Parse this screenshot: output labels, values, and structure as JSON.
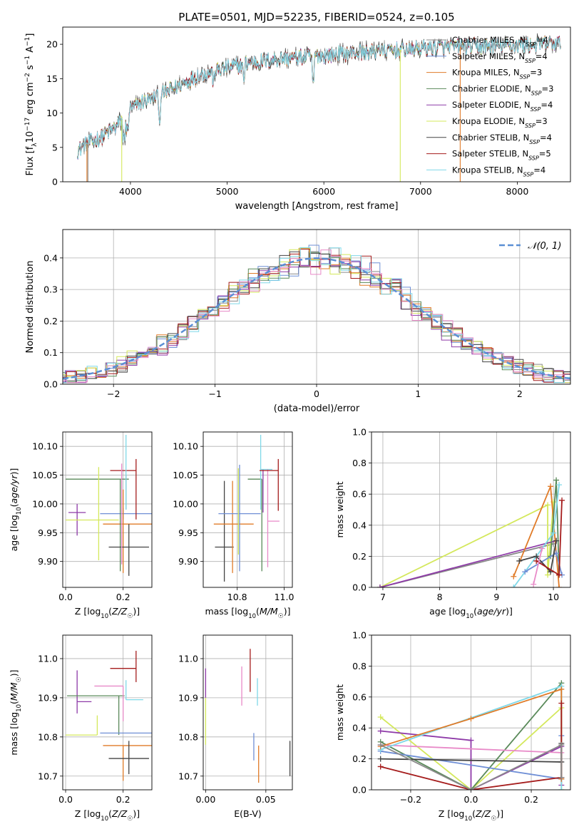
{
  "figure": {
    "title": "PLATE=0501, MJD=52235, FIBERID=0524, z=0.105"
  },
  "palette": {
    "Chabrier MILES": "#8a8a8a",
    "Salpeter MILES": "#6f8fd6",
    "Kroupa MILES": "#e07b28",
    "Chabrier ELODIE": "#5a8a5a",
    "Salpeter ELODIE": "#8e3aa8",
    "Kroupa ELODIE": "#d4e85c",
    "Chabrier STELIB": "#444444",
    "Salpeter STELIB": "#a51c1c",
    "Kroupa STELIB": "#7fd8e8",
    "extra": "#e88ac8"
  },
  "chart_data": [
    {
      "type": "line",
      "panel": "spectrum",
      "xlabel": "wavelength [Angstrom, rest frame]",
      "ylabel": "Flux [f_λ10^-17 erg cm^-2 s^-1 A^-1]",
      "xlim": [
        3300,
        8550
      ],
      "ylim": [
        0,
        22.5
      ],
      "xticks": [
        4000,
        5000,
        6000,
        7000,
        8000
      ],
      "yticks": [
        0,
        5,
        10,
        15,
        20
      ],
      "legend_position": "top-right",
      "continuum": {
        "x": [
          3450,
          3550,
          3700,
          3850,
          4000,
          4100,
          4300,
          4500,
          4700,
          5000,
          5200,
          5500,
          5800,
          6000,
          6300,
          6600,
          7000,
          7300,
          7600,
          8000,
          8300,
          8450
        ],
        "y": [
          4.5,
          5.5,
          6.5,
          8.0,
          10.5,
          11.5,
          12.5,
          14.0,
          15.5,
          16.5,
          17.2,
          17.8,
          18.2,
          18.4,
          18.8,
          19.0,
          19.4,
          19.6,
          19.7,
          19.9,
          20.0,
          20.1
        ]
      },
      "series": [
        {
          "name": "Chabrier MILES, N_SSP=4"
        },
        {
          "name": "Salpeter MILES, N_SSP=4"
        },
        {
          "name": "Kroupa MILES, N_SSP=3"
        },
        {
          "name": "Chabrier ELODIE, N_SSP=3"
        },
        {
          "name": "Salpeter ELODIE, N_SSP=4"
        },
        {
          "name": "Kroupa ELODIE, N_SSP=3"
        },
        {
          "name": "Chabrier STELIB, N_SSP=4"
        },
        {
          "name": "Salpeter STELIB, N_SSP=5"
        },
        {
          "name": "Kroupa STELIB, N_SSP=4"
        }
      ],
      "drop_lines": [
        {
          "x": 3910,
          "series": "Kroupa ELODIE"
        },
        {
          "x": 6790,
          "series": "Kroupa ELODIE"
        },
        {
          "x": 7410,
          "series": "Kroupa MILES"
        },
        {
          "x": 3550,
          "series": "Kroupa MILES"
        },
        {
          "x": 3560,
          "series": "Chabrier MILES"
        }
      ]
    },
    {
      "type": "line",
      "panel": "residual-histogram",
      "xlabel": "(data-model)/error",
      "ylabel": "Normed distribution",
      "xlim": [
        -2.5,
        2.5
      ],
      "ylim": [
        0,
        0.49
      ],
      "xticks": [
        -2,
        -1,
        0,
        1,
        2
      ],
      "yticks": [
        0.0,
        0.1,
        0.2,
        0.3,
        0.4
      ],
      "grid": true,
      "legend_position": "top-right",
      "reference": {
        "name": "𝒩(0, 1)",
        "mean": 0,
        "sigma": 1,
        "style": "dashed"
      },
      "bin_width": 0.1,
      "series_colors": [
        "Chabrier MILES",
        "Salpeter MILES",
        "Kroupa MILES",
        "Chabrier ELODIE",
        "Salpeter ELODIE",
        "Kroupa ELODIE",
        "Chabrier STELIB",
        "Salpeter STELIB",
        "Kroupa STELIB",
        "extra"
      ]
    },
    {
      "type": "scatter",
      "panel": "age-vs-Z",
      "xlabel": "Z [log10(Z/Z☉)]",
      "ylabel": "age  [log10(age/yr)]",
      "xlim": [
        -0.01,
        0.3
      ],
      "ylim": [
        9.855,
        10.125
      ],
      "xticks": [
        0.0,
        0.2
      ],
      "xticklabels": [
        "0.0",
        "0.2"
      ],
      "yticks": [
        9.9,
        9.95,
        10.0,
        10.05,
        10.1
      ],
      "yticklabels": [
        "9.90",
        "9.95",
        "10.00",
        "10.05",
        "10.10"
      ],
      "grid": true,
      "points": [
        {
          "series": "Chabrier MILES",
          "x": 0.21,
          "y": 10.01,
          "xerr": [
            0.0,
            0.0
          ],
          "yerr": [
            0.02,
            0.04
          ]
        },
        {
          "series": "Salpeter MILES",
          "x": 0.2,
          "y": 9.983,
          "xerr": [
            0.08,
            0.1
          ],
          "yerr": [
            0.01,
            0.01
          ]
        },
        {
          "series": "Kroupa MILES",
          "x": 0.2,
          "y": 9.965,
          "xerr": [
            0.07,
            0.1
          ],
          "yerr": [
            0.085,
            0.06
          ]
        },
        {
          "series": "Chabrier ELODIE",
          "x": 0.19,
          "y": 10.043,
          "xerr": [
            0.19,
            0.03
          ],
          "yerr": [
            0.16,
            0.0
          ]
        },
        {
          "series": "Salpeter ELODIE",
          "x": 0.04,
          "y": 9.985,
          "xerr": [
            0.03,
            0.03
          ],
          "yerr": [
            0.04,
            0.015
          ]
        },
        {
          "series": "Kroupa ELODIE",
          "x": 0.115,
          "y": 9.972,
          "xerr": [
            0.115,
            0.07
          ],
          "yerr": [
            0.07,
            0.092
          ]
        },
        {
          "series": "Chabrier STELIB",
          "x": 0.22,
          "y": 9.925,
          "xerr": [
            0.07,
            0.07
          ],
          "yerr": [
            0.05,
            0.04
          ]
        },
        {
          "series": "Salpeter STELIB",
          "x": 0.245,
          "y": 10.058,
          "xerr": [
            0.09,
            0.0
          ],
          "yerr": [
            0.085,
            0.02
          ]
        },
        {
          "series": "Kroupa STELIB",
          "x": 0.21,
          "y": 10.06,
          "xerr": [
            0.0,
            0.0
          ],
          "yerr": [
            0.07,
            0.06
          ]
        },
        {
          "series": "extra",
          "x": 0.195,
          "y": 10.07,
          "xerr": [
            0.0,
            0.0
          ],
          "yerr": [
            0.175,
            0.0
          ]
        }
      ]
    },
    {
      "type": "scatter",
      "panel": "age-vs-mass",
      "xlabel": "mass [log10(M/M☉)]",
      "ylabel": "",
      "xlim": [
        10.655,
        11.035
      ],
      "ylim": [
        9.855,
        10.125
      ],
      "xticks": [
        10.8,
        11.0
      ],
      "xticklabels": [
        "10.8",
        "11.0"
      ],
      "yticks": [
        9.9,
        9.95,
        10.0,
        10.05,
        10.1
      ],
      "yticklabels": [
        "9.90",
        "9.95",
        "10.00",
        "10.05",
        "10.10"
      ],
      "grid": true,
      "points": [
        {
          "series": "Chabrier STELIB",
          "x": 10.745,
          "y": 9.925,
          "xerr": [
            0.04,
            0.04
          ],
          "yerr": [
            0.06,
            0.115
          ]
        },
        {
          "series": "Kroupa MILES",
          "x": 10.78,
          "y": 9.965,
          "xerr": [
            0.08,
            0.09
          ],
          "yerr": [
            0.085,
            0.075
          ]
        },
        {
          "series": "Salpeter MILES",
          "x": 10.81,
          "y": 9.983,
          "xerr": [
            0.09,
            0.09
          ],
          "yerr": [
            0.1,
            0.085
          ]
        },
        {
          "series": "Kroupa ELODIE",
          "x": 10.805,
          "y": 9.972,
          "xerr": [
            0.0,
            0.0
          ],
          "yerr": [
            0.06,
            0.09
          ]
        },
        {
          "series": "Chabrier ELODIE",
          "x": 10.905,
          "y": 10.043,
          "xerr": [
            0.06,
            0.0
          ],
          "yerr": [
            0.16,
            0.0
          ]
        },
        {
          "series": "Salpeter ELODIE",
          "x": 10.91,
          "y": 9.985,
          "xerr": [
            0.0,
            0.0
          ],
          "yerr": [
            0.0,
            0.075
          ]
        },
        {
          "series": "Kroupa STELIB",
          "x": 10.9,
          "y": 10.06,
          "xerr": [
            0.0,
            0.05
          ],
          "yerr": [
            0.07,
            0.06
          ]
        },
        {
          "series": "extra",
          "x": 10.93,
          "y": 9.97,
          "xerr": [
            0.0,
            0.05
          ],
          "yerr": [
            0.08,
            0.09
          ]
        },
        {
          "series": "Salpeter STELIB",
          "x": 10.975,
          "y": 10.058,
          "xerr": [
            0.08,
            0.0
          ],
          "yerr": [
            0.07,
            0.02
          ]
        }
      ]
    },
    {
      "type": "line",
      "panel": "mass-weight-vs-age",
      "xlabel": "age  [log10(age/yr)]",
      "ylabel": "mass weight",
      "xlim": [
        6.8,
        10.3
      ],
      "ylim": [
        0,
        1.0
      ],
      "xticks": [
        7,
        8,
        9,
        10
      ],
      "yticks": [
        0.0,
        0.2,
        0.4,
        0.6,
        0.8,
        1.0
      ],
      "grid": true,
      "series": [
        {
          "color": "Chabrier MILES",
          "x": [
            6.95,
            10.0
          ],
          "y": [
            0.0,
            0.28
          ]
        },
        {
          "color": "Kroupa ELODIE",
          "x": [
            6.95,
            9.9,
            9.9,
            10.0
          ],
          "y": [
            0.0,
            0.53,
            0.08,
            0.55
          ]
        },
        {
          "color": "Salpeter ELODIE",
          "x": [
            6.95,
            10.05
          ],
          "y": [
            0.0,
            0.3
          ]
        },
        {
          "color": "Kroupa MILES",
          "x": [
            9.3,
            9.95,
            10.1
          ],
          "y": [
            0.07,
            0.65,
            0.0
          ]
        },
        {
          "color": "Chabrier ELODIE",
          "x": [
            9.95,
            10.05,
            10.1
          ],
          "y": [
            0.2,
            0.69,
            0.08
          ]
        },
        {
          "color": "Kroupa STELIB",
          "x": [
            9.3,
            10.0,
            10.1
          ],
          "y": [
            0.0,
            0.35,
            0.66
          ]
        },
        {
          "color": "Salpeter MILES",
          "x": [
            9.5,
            10.05,
            10.15
          ],
          "y": [
            0.1,
            0.22,
            0.08
          ]
        },
        {
          "color": "Chabrier STELIB",
          "x": [
            9.4,
            9.7,
            9.95,
            10.05
          ],
          "y": [
            0.17,
            0.2,
            0.1,
            0.3
          ]
        },
        {
          "color": "Salpeter STELIB",
          "x": [
            9.7,
            10.1,
            10.15
          ],
          "y": [
            0.17,
            0.08,
            0.56
          ]
        },
        {
          "color": "extra",
          "x": [
            9.65,
            9.8
          ],
          "y": [
            0.02,
            0.25
          ]
        }
      ]
    },
    {
      "type": "scatter",
      "panel": "mass-vs-Z",
      "xlabel": "Z [log10(Z/Z☉)]",
      "ylabel": "mass [log10(M/M☉)]",
      "xlim": [
        -0.01,
        0.3
      ],
      "ylim": [
        10.665,
        11.06
      ],
      "xticks": [
        0.0,
        0.2
      ],
      "xticklabels": [
        "0.0",
        "0.2"
      ],
      "yticks": [
        10.7,
        10.8,
        10.9,
        11.0
      ],
      "yticklabels": [
        "10.7",
        "10.8",
        "10.9",
        "11.0"
      ],
      "grid": true,
      "points": [
        {
          "series": "Salpeter ELODIE",
          "x": 0.04,
          "y": 10.89,
          "xerr": [
            0.0,
            0.05
          ],
          "yerr": [
            0.03,
            0.08
          ]
        },
        {
          "series": "Chabrier ELODIE",
          "x": 0.185,
          "y": 10.905,
          "xerr": [
            0.18,
            0.02
          ],
          "yerr": [
            0.1,
            0.0
          ]
        },
        {
          "series": "extra",
          "x": 0.2,
          "y": 10.93,
          "xerr": [
            0.1,
            0.0
          ],
          "yerr": [
            0.09,
            0.0
          ]
        },
        {
          "series": "Kroupa STELIB",
          "x": 0.21,
          "y": 10.895,
          "xerr": [
            0.0,
            0.06
          ],
          "yerr": [
            0.0,
            0.05
          ]
        },
        {
          "series": "Salpeter STELIB",
          "x": 0.245,
          "y": 10.975,
          "xerr": [
            0.09,
            0.0
          ],
          "yerr": [
            0.035,
            0.045
          ]
        },
        {
          "series": "Kroupa ELODIE",
          "x": 0.11,
          "y": 10.805,
          "xerr": [
            0.11,
            0.0
          ],
          "yerr": [
            0.0,
            0.05
          ]
        },
        {
          "series": "Salpeter MILES",
          "x": 0.2,
          "y": 10.81,
          "xerr": [
            0.08,
            0.1
          ],
          "yerr": [
            0.0,
            0.0
          ]
        },
        {
          "series": "Kroupa MILES",
          "x": 0.2,
          "y": 10.778,
          "xerr": [
            0.07,
            0.1
          ],
          "yerr": [
            0.09,
            0.0
          ]
        },
        {
          "series": "Chabrier STELIB",
          "x": 0.22,
          "y": 10.745,
          "xerr": [
            0.07,
            0.07
          ],
          "yerr": [
            0.04,
            0.045
          ]
        }
      ]
    },
    {
      "type": "scatter",
      "panel": "mass-vs-EBV",
      "xlabel": "E(B-V)",
      "ylabel": "",
      "xlim": [
        -0.002,
        0.072
      ],
      "ylim": [
        10.665,
        11.06
      ],
      "xticks": [
        0.0,
        0.05
      ],
      "xticklabels": [
        "0.00",
        "0.05"
      ],
      "yticks": [
        10.7,
        10.8,
        10.9,
        11.0
      ],
      "yticklabels": [
        "10.7",
        "10.8",
        "10.9",
        "11.0"
      ],
      "grid": true,
      "points": [
        {
          "series": "Salpeter ELODIE",
          "x": 0.0,
          "y": 10.9,
          "yerr": [
            0.0,
            0.075
          ]
        },
        {
          "series": "Kroupa ELODIE",
          "x": 0.0,
          "y": 10.85,
          "yerr": [
            0.07,
            0.05
          ]
        },
        {
          "series": "Salpeter STELIB",
          "x": 0.037,
          "y": 10.975,
          "yerr": [
            0.06,
            0.05
          ]
        },
        {
          "series": "extra",
          "x": 0.03,
          "y": 10.93,
          "yerr": [
            0.05,
            0.05
          ]
        },
        {
          "series": "Kroupa STELIB",
          "x": 0.043,
          "y": 10.9,
          "yerr": [
            0.02,
            0.05
          ]
        },
        {
          "series": "Salpeter MILES",
          "x": 0.04,
          "y": 10.81,
          "yerr": [
            0.07,
            0.0
          ]
        },
        {
          "series": "Kroupa MILES",
          "x": 0.044,
          "y": 10.778,
          "yerr": [
            0.095,
            0.0
          ]
        },
        {
          "series": "Chabrier STELIB",
          "x": 0.07,
          "y": 10.745,
          "yerr": [
            0.045,
            0.045
          ]
        }
      ]
    },
    {
      "type": "line",
      "panel": "mass-weight-vs-Z",
      "xlabel": "Z [log10(Z/Z☉)]",
      "ylabel": "mass weight",
      "xlim": [
        -0.33,
        0.33
      ],
      "ylim": [
        0,
        1.0
      ],
      "xticks": [
        -0.2,
        0.0,
        0.2
      ],
      "xticklabels": [
        "−0.2",
        "0.0",
        "0.2"
      ],
      "yticks": [
        0.0,
        0.2,
        0.4,
        0.6,
        0.8,
        1.0
      ],
      "grid": true,
      "series": [
        {
          "color": "Kroupa ELODIE",
          "x": [
            -0.3,
            0.0,
            0.3,
            0.3
          ],
          "y": [
            0.47,
            0.0,
            0.53,
            0.0
          ]
        },
        {
          "color": "Salpeter ELODIE",
          "x": [
            -0.3,
            0.0,
            0.0,
            0.3,
            0.3
          ],
          "y": [
            0.38,
            0.32,
            0.0,
            0.28,
            0.03
          ]
        },
        {
          "color": "Chabrier ELODIE",
          "x": [
            -0.3,
            0.0,
            0.3,
            0.3
          ],
          "y": [
            0.31,
            0.0,
            0.69,
            0.08
          ]
        },
        {
          "color": "extra",
          "x": [
            -0.3,
            0.3
          ],
          "y": [
            0.29,
            0.24
          ]
        },
        {
          "color": "Salpeter MILES",
          "x": [
            -0.3,
            0.3,
            0.3
          ],
          "y": [
            0.25,
            0.07,
            0.35
          ]
        },
        {
          "color": "Kroupa STELIB",
          "x": [
            -0.3,
            0.3,
            0.3
          ],
          "y": [
            0.26,
            0.67,
            0.0
          ]
        },
        {
          "color": "Kroupa MILES",
          "x": [
            -0.3,
            0.0,
            0.3,
            0.3
          ],
          "y": [
            0.28,
            0.46,
            0.65,
            0.07
          ]
        },
        {
          "color": "Chabrier STELIB",
          "x": [
            -0.3,
            0.3,
            0.3
          ],
          "y": [
            0.2,
            0.18,
            0.3
          ]
        },
        {
          "color": "Salpeter STELIB",
          "x": [
            -0.3,
            0.0,
            0.3,
            0.3
          ],
          "y": [
            0.15,
            0.0,
            0.08,
            0.56
          ]
        },
        {
          "color": "Chabrier MILES",
          "x": [
            -0.3,
            0.0,
            0.3,
            0.3
          ],
          "y": [
            0.29,
            0.0,
            0.29,
            0.08
          ]
        }
      ]
    }
  ]
}
